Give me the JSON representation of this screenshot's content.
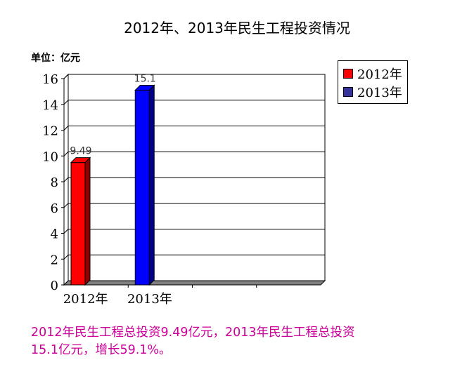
{
  "title": "2012年、2013年民生工程投资情况",
  "unit_label": "单位：亿元",
  "chart_data": {
    "type": "bar",
    "title": "2012年、2013年民生工程投资情况",
    "xlabel": "",
    "ylabel": "单位：亿元",
    "ylim": [
      0,
      16
    ],
    "yticks": [
      0,
      2,
      4,
      6,
      8,
      10,
      12,
      14,
      16
    ],
    "grid": true,
    "legend_position": "top-right",
    "categories": [
      "2012年",
      "2013年",
      "",
      ""
    ],
    "series": [
      {
        "name": "2012年",
        "color": "#ff0000",
        "values": [
          9.49,
          null,
          null,
          null
        ],
        "labels": [
          "9.49",
          null,
          null,
          null
        ]
      },
      {
        "name": "2013年",
        "color": "#0000ff",
        "values": [
          null,
          15.1,
          null,
          null
        ],
        "labels": [
          null,
          "15.1",
          null,
          null
        ]
      }
    ]
  },
  "legend": {
    "items": [
      {
        "label": "2012年",
        "color": "#ff0000"
      },
      {
        "label": "2013年",
        "color": "#333399"
      }
    ]
  },
  "note": "2012年民生工程总投资9.49亿元，2013年民生工程总投资15.1亿元，增长59.1%。"
}
